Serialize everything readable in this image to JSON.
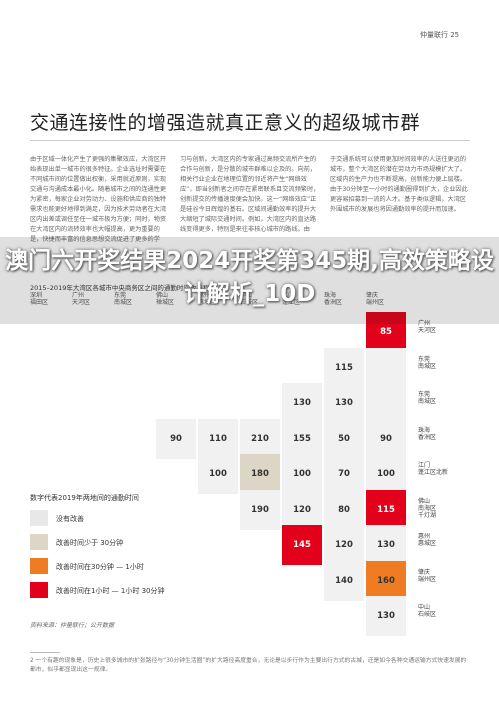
{
  "header": {
    "right": "仲量联行 25"
  },
  "title": "交通连接性的增强造就真正意义的超级城市群",
  "columns": [
    "由于区域一体化产生了更强的集聚效应，大湾区开始表现出单一城市的很多特征。企业选址时需要在不同城市间的位置做出权衡，采用就近原则，实现交通与沟通成本最小化。随着城市之间的连通性更为紧密，每家企业对劳动力、设施和供应商的独特需求也能更好地得到满足，因为技术劳动者在大湾区内出差或调任至任一城市极为方便；同时，物资在大湾区内的流转效率也大幅提高，更为重要的是，快捷而丰富的信息思想交流促进了更多的学",
    "习与创新。大湾区内的专家通过高频交流所产生的合作与创新，是分散的城市群难以企及的。向前，相关行业企业在地理位置的邻近将产生“网络效应”，即当创新者之间存在紧密联系且交流频繁时，创新提交的传播速度便会加快。这一“网络效应”正是硅谷今日辉煌的基石。区域间通勤效率的提升大大缩短了城际交通时间。例如，大湾区内的直达路线变得更多，特别是来往非核心城市的路线。由",
    "于交通系统可以使用更加时间效率的人送往更远的城市，整个大湾区的潜在劳动力市场规模扩大了。区域内的生产力也不断提高，创新能力便上层楼。由于30分钟至一小时的通勤圈得到扩大，企业因此更容易招募到一流的人才。基于类似逻辑，大湾区外围城市的发展也将因通勤效率的提升而加速。"
  ],
  "chart_title": "2015–2019年大湾区各城市中央商务区之间的通勤时间改善程度",
  "col_headers": [
    "深圳\n福田区",
    "广州\n天河区",
    "东莞\n南城区",
    "佛山\n禅城区",
    "惠州\n惠城区",
    "中山\n石岐区",
    "江门\n蓬江区",
    "珠海\n香洲区",
    "肇庆\n端州区"
  ],
  "rows": [
    {
      "label": "广州\n天河区",
      "cells": [
        {
          "v": "85",
          "c": "red"
        }
      ]
    },
    {
      "label": "东莞\n南城区",
      "cells": [
        {
          "v": "115",
          "c": "none"
        },
        {
          "v": "",
          "c": "none"
        }
      ]
    },
    {
      "label": "东莞\n南城区",
      "cells": [
        {
          "v": "130",
          "c": "none"
        },
        {
          "v": "130",
          "c": "none"
        },
        {
          "v": "",
          "c": "none"
        }
      ]
    },
    {
      "label": "珠海\n香洲区",
      "cells": [
        {
          "v": "90",
          "c": "none"
        },
        {
          "v": "110",
          "c": "none"
        },
        {
          "v": "210",
          "c": "none"
        },
        {
          "v": "155",
          "c": "none"
        },
        {
          "v": "50",
          "c": "none"
        },
        {
          "v": "90",
          "c": "none"
        }
      ]
    },
    {
      "label": "江门\n蓬江区北新",
      "cells": [
        {
          "v": "100",
          "c": "none"
        },
        {
          "v": "180",
          "c": "tan"
        },
        {
          "v": "100",
          "c": "none"
        },
        {
          "v": "70",
          "c": "none"
        },
        {
          "v": "100",
          "c": "none"
        }
      ]
    },
    {
      "label": "佛山\n南海区\n千灯湖",
      "cells": [
        {
          "v": "190",
          "c": "none"
        },
        {
          "v": "120",
          "c": "none"
        },
        {
          "v": "80",
          "c": "none"
        },
        {
          "v": "115",
          "c": "red"
        }
      ]
    },
    {
      "label": "惠州\n惠城区",
      "cells": [
        {
          "v": "145",
          "c": "red"
        },
        {
          "v": "120",
          "c": "none"
        },
        {
          "v": "130",
          "c": "none"
        }
      ]
    },
    {
      "label": "肇庆\n端州区",
      "cells": [
        {
          "v": "140",
          "c": "none"
        },
        {
          "v": "160",
          "c": "orange"
        }
      ]
    },
    {
      "label": "中山\n石岐区",
      "cells": [
        {
          "v": "130",
          "c": "none"
        }
      ]
    }
  ],
  "banner": "澳门六开奖结果2024开奖第345期,高效策略设计解析_10D",
  "legend": {
    "title": "数字代表2019年两地间的通勤时间",
    "items": [
      {
        "label": "没有改善",
        "color": "#e8e8e8"
      },
      {
        "label": "改善时间少于 30分钟",
        "color": "#ddd5c6"
      },
      {
        "label": "改善时间在30分钟 — 1小时",
        "color": "#ef7c22"
      },
      {
        "label": "改善时间在1小时 — 1小时 30分钟",
        "color": "#e3001b"
      }
    ]
  },
  "source": "资料来源：仲量联行；公开数据",
  "footnote": "2 一个有趣的现象是，历史上很多城市的扩张路径与“30分钟生活圈”的扩大路径高度重合，无论是以步行作为主要出行方式的古城，还是如今各种交通运输方式快速发展的都市，似乎都显现出这一规律。",
  "colors": {
    "red": "#e3001b",
    "orange": "#ef7c22",
    "tan": "#ddd5c6",
    "grey": "#f1f1f1"
  }
}
